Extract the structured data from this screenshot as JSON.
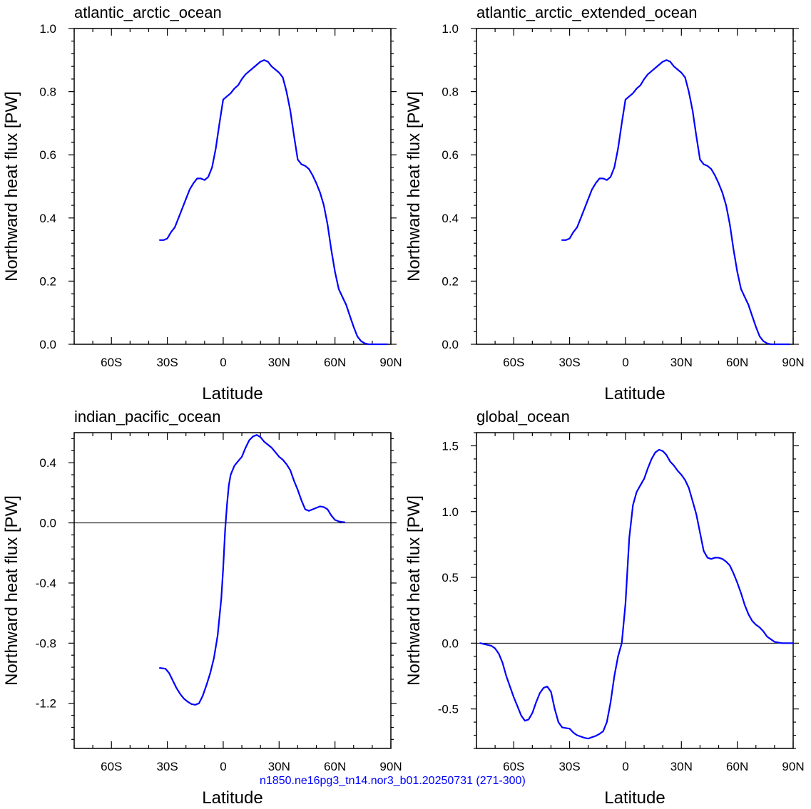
{
  "footer": "n1850.ne16pg3_tn14.nor3_b01.20250731 (271-300)",
  "colors": {
    "series": "#0000ff",
    "axes": "#000000"
  },
  "chart_data": [
    {
      "type": "line",
      "title": "atlantic_arctic_ocean",
      "xlabel": "Latitude",
      "ylabel": "Northward heat flux [PW]",
      "xlim": [
        -80,
        90
      ],
      "ylim": [
        0,
        1.0
      ],
      "xticks": [
        -60,
        -30,
        0,
        30,
        60,
        90
      ],
      "xtick_labels": [
        "60S",
        "30S",
        "0",
        "30N",
        "60N",
        "90N"
      ],
      "yticks": [
        0,
        0.2,
        0.4,
        0.6,
        0.8,
        1.0
      ],
      "ytick_labels": [
        "0.0",
        "0.2",
        "0.4",
        "0.6",
        "0.8",
        "1.0"
      ],
      "zero_line": false,
      "series": [
        {
          "x": [
            -34,
            -32,
            -30,
            -28,
            -26,
            -24,
            -22,
            -20,
            -18,
            -16,
            -14,
            -12,
            -10,
            -8,
            -6,
            -4,
            -2,
            0,
            2,
            4,
            6,
            8,
            10,
            12,
            14,
            16,
            18,
            20,
            22,
            24,
            26,
            28,
            30,
            32,
            34,
            36,
            38,
            40,
            42,
            44,
            46,
            48,
            50,
            52,
            54,
            56,
            58,
            60,
            62,
            64,
            66,
            68,
            70,
            72,
            74,
            76,
            78,
            80,
            82,
            84,
            86,
            88
          ],
          "y": [
            0.33,
            0.33,
            0.335,
            0.355,
            0.37,
            0.4,
            0.43,
            0.46,
            0.49,
            0.51,
            0.525,
            0.525,
            0.52,
            0.53,
            0.56,
            0.62,
            0.7,
            0.775,
            0.785,
            0.795,
            0.81,
            0.82,
            0.84,
            0.855,
            0.865,
            0.875,
            0.885,
            0.895,
            0.9,
            0.895,
            0.88,
            0.87,
            0.86,
            0.845,
            0.8,
            0.74,
            0.66,
            0.585,
            0.57,
            0.565,
            0.555,
            0.535,
            0.51,
            0.48,
            0.44,
            0.38,
            0.3,
            0.23,
            0.175,
            0.15,
            0.125,
            0.09,
            0.055,
            0.025,
            0.01,
            0.003,
            0.0,
            0.0,
            0.0,
            0.0,
            0.0,
            0.0
          ]
        }
      ]
    },
    {
      "type": "line",
      "title": "atlantic_arctic_extended_ocean",
      "xlabel": "Latitude",
      "ylabel": "Northward heat flux [PW]",
      "xlim": [
        -80,
        90
      ],
      "ylim": [
        0,
        1.0
      ],
      "xticks": [
        -60,
        -30,
        0,
        30,
        60,
        90
      ],
      "xtick_labels": [
        "60S",
        "30S",
        "0",
        "30N",
        "60N",
        "90N"
      ],
      "yticks": [
        0,
        0.2,
        0.4,
        0.6,
        0.8,
        1.0
      ],
      "ytick_labels": [
        "0.0",
        "0.2",
        "0.4",
        "0.6",
        "0.8",
        "1.0"
      ],
      "zero_line": false,
      "series": [
        {
          "x": [
            -34,
            -32,
            -30,
            -28,
            -26,
            -24,
            -22,
            -20,
            -18,
            -16,
            -14,
            -12,
            -10,
            -8,
            -6,
            -4,
            -2,
            0,
            2,
            4,
            6,
            8,
            10,
            12,
            14,
            16,
            18,
            20,
            22,
            24,
            26,
            28,
            30,
            32,
            34,
            36,
            38,
            40,
            42,
            44,
            46,
            48,
            50,
            52,
            54,
            56,
            58,
            60,
            62,
            64,
            66,
            68,
            70,
            72,
            74,
            76,
            78,
            80,
            82,
            84,
            86,
            88
          ],
          "y": [
            0.33,
            0.33,
            0.335,
            0.355,
            0.37,
            0.4,
            0.43,
            0.46,
            0.49,
            0.51,
            0.525,
            0.525,
            0.52,
            0.53,
            0.56,
            0.62,
            0.7,
            0.775,
            0.785,
            0.795,
            0.81,
            0.82,
            0.84,
            0.855,
            0.865,
            0.875,
            0.885,
            0.895,
            0.9,
            0.895,
            0.88,
            0.87,
            0.86,
            0.845,
            0.8,
            0.74,
            0.66,
            0.585,
            0.57,
            0.565,
            0.555,
            0.535,
            0.51,
            0.48,
            0.44,
            0.38,
            0.3,
            0.23,
            0.175,
            0.15,
            0.125,
            0.09,
            0.055,
            0.025,
            0.01,
            0.003,
            0.0,
            0.0,
            0.0,
            0.0,
            0.0,
            0.0
          ]
        }
      ]
    },
    {
      "type": "line",
      "title": "indian_pacific_ocean",
      "xlabel": "Latitude",
      "ylabel": "Northward heat flux [PW]",
      "xlim": [
        -80,
        90
      ],
      "ylim": [
        -1.5,
        0.6
      ],
      "xticks": [
        -60,
        -30,
        0,
        30,
        60,
        90
      ],
      "xtick_labels": [
        "60S",
        "30S",
        "0",
        "30N",
        "60N",
        "90N"
      ],
      "yticks": [
        -1.2,
        -0.8,
        -0.4,
        0.0,
        0.4
      ],
      "ytick_labels": [
        "-1.2",
        "-0.8",
        "-0.4",
        "0.0",
        "0.4"
      ],
      "zero_line": true,
      "series": [
        {
          "x": [
            -34,
            -31,
            -29,
            -27,
            -25,
            -23,
            -21,
            -19,
            -17,
            -15,
            -13,
            -11,
            -9,
            -7,
            -5,
            -3,
            -1,
            0,
            1,
            2,
            3,
            4,
            6,
            8,
            10,
            12,
            14,
            16,
            18,
            20,
            22,
            24,
            26,
            28,
            30,
            32,
            34,
            36,
            38,
            40,
            42,
            44,
            46,
            48,
            50,
            52,
            54,
            56,
            58,
            60,
            62,
            64,
            65
          ],
          "y": [
            -0.965,
            -0.97,
            -1.0,
            -1.05,
            -1.1,
            -1.14,
            -1.17,
            -1.19,
            -1.205,
            -1.21,
            -1.2,
            -1.15,
            -1.08,
            -1.0,
            -0.9,
            -0.75,
            -0.5,
            -0.3,
            -0.05,
            0.12,
            0.25,
            0.32,
            0.38,
            0.41,
            0.44,
            0.5,
            0.55,
            0.575,
            0.585,
            0.57,
            0.54,
            0.52,
            0.5,
            0.47,
            0.44,
            0.42,
            0.39,
            0.35,
            0.28,
            0.22,
            0.15,
            0.09,
            0.08,
            0.09,
            0.1,
            0.11,
            0.105,
            0.09,
            0.05,
            0.02,
            0.01,
            0.005,
            0.005
          ]
        }
      ]
    },
    {
      "type": "line",
      "title": "global_ocean",
      "xlabel": "Latitude",
      "ylabel": "Northward heat flux [PW]",
      "xlim": [
        -80,
        90
      ],
      "ylim": [
        -0.8,
        1.6
      ],
      "xticks": [
        -60,
        -30,
        0,
        30,
        60,
        90
      ],
      "xtick_labels": [
        "60S",
        "30S",
        "0",
        "30N",
        "60N",
        "90N"
      ],
      "yticks": [
        -0.5,
        0.0,
        0.5,
        1.0,
        1.5
      ],
      "ytick_labels": [
        "-0.5",
        "0.0",
        "0.5",
        "1.0",
        "1.5"
      ],
      "zero_line": true,
      "series": [
        {
          "x": [
            -78,
            -75,
            -72,
            -70,
            -68,
            -66,
            -64,
            -62,
            -60,
            -58,
            -56,
            -54,
            -52,
            -50,
            -48,
            -46,
            -44,
            -42,
            -40,
            -38,
            -36,
            -34,
            -32,
            -30,
            -28,
            -26,
            -24,
            -22,
            -20,
            -18,
            -16,
            -14,
            -12,
            -10,
            -8,
            -6,
            -4,
            -2,
            0,
            2,
            4,
            6,
            8,
            10,
            12,
            14,
            16,
            18,
            20,
            22,
            24,
            26,
            28,
            30,
            32,
            34,
            36,
            38,
            40,
            42,
            44,
            46,
            48,
            50,
            52,
            54,
            56,
            58,
            60,
            62,
            64,
            66,
            68,
            70,
            72,
            74,
            76,
            78,
            80,
            82,
            84,
            86,
            88,
            90
          ],
          "y": [
            0.0,
            -0.01,
            -0.02,
            -0.04,
            -0.08,
            -0.15,
            -0.25,
            -0.33,
            -0.41,
            -0.48,
            -0.55,
            -0.59,
            -0.58,
            -0.53,
            -0.45,
            -0.38,
            -0.34,
            -0.33,
            -0.37,
            -0.5,
            -0.6,
            -0.64,
            -0.645,
            -0.65,
            -0.68,
            -0.7,
            -0.71,
            -0.72,
            -0.725,
            -0.715,
            -0.705,
            -0.69,
            -0.67,
            -0.6,
            -0.45,
            -0.25,
            -0.1,
            0.0,
            0.3,
            0.8,
            1.05,
            1.15,
            1.2,
            1.25,
            1.33,
            1.4,
            1.45,
            1.47,
            1.46,
            1.43,
            1.38,
            1.35,
            1.31,
            1.28,
            1.24,
            1.18,
            1.08,
            0.98,
            0.84,
            0.7,
            0.65,
            0.64,
            0.65,
            0.65,
            0.64,
            0.62,
            0.59,
            0.53,
            0.46,
            0.38,
            0.29,
            0.22,
            0.17,
            0.14,
            0.12,
            0.09,
            0.05,
            0.03,
            0.01,
            0.005,
            0.0,
            0.0,
            0.0,
            0.0
          ]
        }
      ]
    }
  ]
}
